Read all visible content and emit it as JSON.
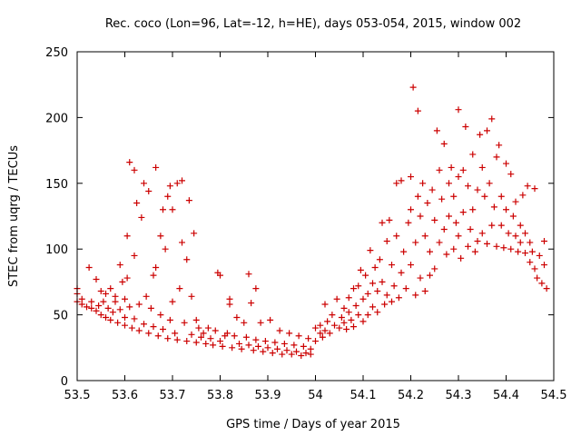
{
  "chart_data": {
    "type": "scatter",
    "title": "Rec. coco (Lon=96, Lat=-12, h=HE), days 053-054, 2015, window 002",
    "xlabel": "GPS time / Days of year 2015",
    "ylabel": "STEC from uqrg / TECUs",
    "xlim": [
      53.5,
      54.5
    ],
    "ylim": [
      0,
      250
    ],
    "x_ticks": [
      53.5,
      53.6,
      53.7,
      53.8,
      53.9,
      54.0,
      54.1,
      54.2,
      54.3,
      54.4,
      54.5
    ],
    "x_tick_labels": [
      "53.5",
      "53.6",
      "53.7",
      "53.8",
      "53.9",
      "54",
      "54.1",
      "54.2",
      "54.3",
      "54.4",
      "54.5"
    ],
    "y_ticks": [
      0,
      50,
      100,
      150,
      200,
      250
    ],
    "y_tick_labels": [
      "0",
      "50",
      "100",
      "150",
      "200",
      "250"
    ],
    "grid": false,
    "marker": "+",
    "marker_color": "#cc0000",
    "series": [
      {
        "name": "STEC",
        "points": [
          [
            53.5,
            70
          ],
          [
            53.5,
            66
          ],
          [
            53.5,
            60
          ],
          [
            53.51,
            62
          ],
          [
            53.51,
            58
          ],
          [
            53.52,
            56
          ],
          [
            53.525,
            86
          ],
          [
            53.53,
            60
          ],
          [
            53.53,
            55
          ],
          [
            53.54,
            77
          ],
          [
            53.54,
            53
          ],
          [
            53.545,
            57
          ],
          [
            53.55,
            68
          ],
          [
            53.55,
            50
          ],
          [
            53.555,
            60
          ],
          [
            53.56,
            66
          ],
          [
            53.56,
            48
          ],
          [
            53.565,
            55
          ],
          [
            53.57,
            70
          ],
          [
            53.57,
            46
          ],
          [
            53.575,
            52
          ],
          [
            53.58,
            60
          ],
          [
            53.58,
            64
          ],
          [
            53.585,
            44
          ],
          [
            53.59,
            54
          ],
          [
            53.59,
            88
          ],
          [
            53.595,
            75
          ],
          [
            53.6,
            62
          ],
          [
            53.6,
            42
          ],
          [
            53.6,
            48
          ],
          [
            53.605,
            110
          ],
          [
            53.605,
            78
          ],
          [
            53.61,
            166
          ],
          [
            53.61,
            56
          ],
          [
            53.615,
            40
          ],
          [
            53.62,
            160
          ],
          [
            53.62,
            95
          ],
          [
            53.62,
            47
          ],
          [
            53.625,
            135
          ],
          [
            53.63,
            58
          ],
          [
            53.63,
            38
          ],
          [
            53.635,
            124
          ],
          [
            53.64,
            150
          ],
          [
            53.64,
            43
          ],
          [
            53.645,
            64
          ],
          [
            53.65,
            144
          ],
          [
            53.65,
            36
          ],
          [
            53.655,
            55
          ],
          [
            53.66,
            80
          ],
          [
            53.66,
            41
          ],
          [
            53.665,
            162
          ],
          [
            53.665,
            86
          ],
          [
            53.67,
            34
          ],
          [
            53.675,
            50
          ],
          [
            53.675,
            110
          ],
          [
            53.68,
            130
          ],
          [
            53.68,
            39
          ],
          [
            53.685,
            100
          ],
          [
            53.69,
            140
          ],
          [
            53.69,
            32
          ],
          [
            53.695,
            148
          ],
          [
            53.695,
            46
          ],
          [
            53.7,
            130
          ],
          [
            53.7,
            60
          ],
          [
            53.705,
            36
          ],
          [
            53.71,
            150
          ],
          [
            53.71,
            31
          ],
          [
            53.715,
            70
          ],
          [
            53.72,
            152
          ],
          [
            53.72,
            105
          ],
          [
            53.725,
            44
          ],
          [
            53.73,
            92
          ],
          [
            53.73,
            30
          ],
          [
            53.735,
            137
          ],
          [
            53.74,
            64
          ],
          [
            53.74,
            35
          ],
          [
            53.745,
            112
          ],
          [
            53.75,
            46
          ],
          [
            53.75,
            29
          ],
          [
            53.755,
            40
          ],
          [
            53.76,
            33
          ],
          [
            53.765,
            36
          ],
          [
            53.77,
            28
          ],
          [
            53.775,
            40
          ],
          [
            53.78,
            32
          ],
          [
            53.785,
            27
          ],
          [
            53.79,
            38
          ],
          [
            53.795,
            82
          ],
          [
            53.8,
            30
          ],
          [
            53.8,
            80
          ],
          [
            53.805,
            26
          ],
          [
            53.81,
            34
          ],
          [
            53.815,
            36
          ],
          [
            53.82,
            62
          ],
          [
            53.82,
            58
          ],
          [
            53.825,
            25
          ],
          [
            53.83,
            34
          ],
          [
            53.835,
            48
          ],
          [
            53.84,
            28
          ],
          [
            53.845,
            24
          ],
          [
            53.85,
            44
          ],
          [
            53.855,
            33
          ],
          [
            53.86,
            81
          ],
          [
            53.86,
            27
          ],
          [
            53.865,
            59
          ],
          [
            53.87,
            23
          ],
          [
            53.875,
            70
          ],
          [
            53.875,
            31
          ],
          [
            53.88,
            26
          ],
          [
            53.885,
            44
          ],
          [
            53.89,
            22
          ],
          [
            53.895,
            30
          ],
          [
            53.9,
            25
          ],
          [
            53.905,
            46
          ],
          [
            53.91,
            21
          ],
          [
            53.915,
            29
          ],
          [
            53.92,
            24
          ],
          [
            53.925,
            38
          ],
          [
            53.93,
            20
          ],
          [
            53.935,
            28
          ],
          [
            53.94,
            23
          ],
          [
            53.945,
            36
          ],
          [
            53.95,
            20
          ],
          [
            53.955,
            27
          ],
          [
            53.96,
            22
          ],
          [
            53.965,
            34
          ],
          [
            53.97,
            19
          ],
          [
            53.975,
            26
          ],
          [
            53.98,
            21
          ],
          [
            53.985,
            32
          ],
          [
            53.99,
            24
          ],
          [
            53.99,
            20
          ],
          [
            54.0,
            40
          ],
          [
            54.0,
            30
          ],
          [
            54.01,
            36
          ],
          [
            54.01,
            42
          ],
          [
            54.015,
            33
          ],
          [
            54.02,
            58
          ],
          [
            54.02,
            38
          ],
          [
            54.025,
            45
          ],
          [
            54.03,
            36
          ],
          [
            54.035,
            50
          ],
          [
            54.04,
            42
          ],
          [
            54.045,
            62
          ],
          [
            54.05,
            40
          ],
          [
            54.055,
            48
          ],
          [
            54.06,
            55
          ],
          [
            54.06,
            44
          ],
          [
            54.065,
            39
          ],
          [
            54.07,
            63
          ],
          [
            54.07,
            52
          ],
          [
            54.075,
            46
          ],
          [
            54.08,
            70
          ],
          [
            54.08,
            41
          ],
          [
            54.085,
            57
          ],
          [
            54.09,
            72
          ],
          [
            54.09,
            50
          ],
          [
            54.095,
            84
          ],
          [
            54.1,
            62
          ],
          [
            54.1,
            45
          ],
          [
            54.105,
            80
          ],
          [
            54.11,
            66
          ],
          [
            54.11,
            50
          ],
          [
            54.115,
            99
          ],
          [
            54.12,
            74
          ],
          [
            54.12,
            56
          ],
          [
            54.125,
            86
          ],
          [
            54.13,
            68
          ],
          [
            54.13,
            52
          ],
          [
            54.135,
            92
          ],
          [
            54.14,
            75
          ],
          [
            54.14,
            120
          ],
          [
            54.145,
            58
          ],
          [
            54.15,
            106
          ],
          [
            54.15,
            65
          ],
          [
            54.155,
            122
          ],
          [
            54.16,
            88
          ],
          [
            54.16,
            60
          ],
          [
            54.165,
            72
          ],
          [
            54.17,
            150
          ],
          [
            54.17,
            110
          ],
          [
            54.175,
            63
          ],
          [
            54.18,
            152
          ],
          [
            54.18,
            82
          ],
          [
            54.185,
            98
          ],
          [
            54.19,
            70
          ],
          [
            54.195,
            120
          ],
          [
            54.2,
            155
          ],
          [
            54.2,
            130
          ],
          [
            54.2,
            88
          ],
          [
            54.205,
            223
          ],
          [
            54.21,
            105
          ],
          [
            54.21,
            65
          ],
          [
            54.215,
            205
          ],
          [
            54.215,
            140
          ],
          [
            54.22,
            125
          ],
          [
            54.22,
            78
          ],
          [
            54.225,
            150
          ],
          [
            54.23,
            110
          ],
          [
            54.23,
            68
          ],
          [
            54.235,
            135
          ],
          [
            54.24,
            98
          ],
          [
            54.24,
            80
          ],
          [
            54.245,
            145
          ],
          [
            54.25,
            122
          ],
          [
            54.25,
            85
          ],
          [
            54.255,
            190
          ],
          [
            54.26,
            105
          ],
          [
            54.26,
            160
          ],
          [
            54.265,
            138
          ],
          [
            54.27,
            180
          ],
          [
            54.27,
            115
          ],
          [
            54.275,
            96
          ],
          [
            54.28,
            150
          ],
          [
            54.28,
            125
          ],
          [
            54.285,
            162
          ],
          [
            54.29,
            100
          ],
          [
            54.29,
            140
          ],
          [
            54.295,
            120
          ],
          [
            54.3,
            206
          ],
          [
            54.3,
            155
          ],
          [
            54.3,
            110
          ],
          [
            54.305,
            93
          ],
          [
            54.31,
            128
          ],
          [
            54.31,
            160
          ],
          [
            54.315,
            193
          ],
          [
            54.32,
            148
          ],
          [
            54.32,
            102
          ],
          [
            54.325,
            115
          ],
          [
            54.33,
            172
          ],
          [
            54.33,
            130
          ],
          [
            54.335,
            98
          ],
          [
            54.34,
            145
          ],
          [
            54.34,
            106
          ],
          [
            54.345,
            187
          ],
          [
            54.35,
            162
          ],
          [
            54.35,
            112
          ],
          [
            54.355,
            140
          ],
          [
            54.36,
            104
          ],
          [
            54.36,
            190
          ],
          [
            54.365,
            150
          ],
          [
            54.37,
            199
          ],
          [
            54.37,
            118
          ],
          [
            54.375,
            132
          ],
          [
            54.38,
            102
          ],
          [
            54.38,
            170
          ],
          [
            54.385,
            179
          ],
          [
            54.39,
            140
          ],
          [
            54.39,
            118
          ],
          [
            54.395,
            101
          ],
          [
            54.4,
            165
          ],
          [
            54.4,
            130
          ],
          [
            54.405,
            112
          ],
          [
            54.41,
            157
          ],
          [
            54.41,
            100
          ],
          [
            54.415,
            125
          ],
          [
            54.42,
            110
          ],
          [
            54.42,
            136
          ],
          [
            54.425,
            98
          ],
          [
            54.43,
            118
          ],
          [
            54.43,
            105
          ],
          [
            54.435,
            141
          ],
          [
            54.44,
            112
          ],
          [
            54.44,
            97
          ],
          [
            54.445,
            148
          ],
          [
            54.45,
            105
          ],
          [
            54.45,
            90
          ],
          [
            54.455,
            98
          ],
          [
            54.46,
            146
          ],
          [
            54.46,
            85
          ],
          [
            54.465,
            78
          ],
          [
            54.47,
            95
          ],
          [
            54.475,
            74
          ],
          [
            54.48,
            106
          ],
          [
            54.48,
            88
          ],
          [
            54.485,
            70
          ]
        ]
      }
    ]
  }
}
